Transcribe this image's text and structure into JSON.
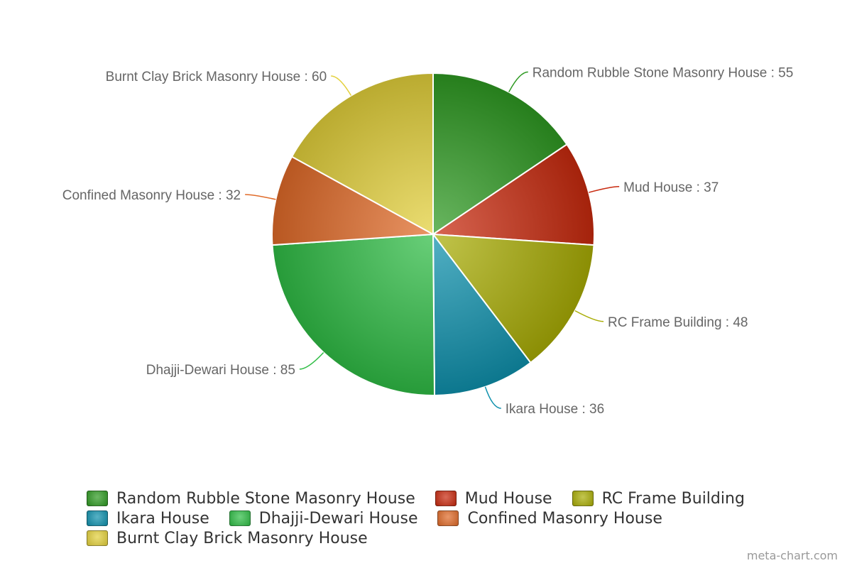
{
  "chart_data": {
    "type": "pie",
    "categories": [
      "Random Rubble Stone Masonry House",
      "Mud House",
      "RC Frame Building",
      "Ikara House",
      "Dhajji-Dewari House",
      "Confined Masonry House",
      "Burnt Clay Brick Masonry House"
    ],
    "values": [
      55,
      37,
      48,
      36,
      85,
      32,
      60
    ],
    "colors": [
      "#2e9a22",
      "#c8290e",
      "#a9ad05",
      "#0f91ad",
      "#2fbd45",
      "#e06a28",
      "#e3d03b"
    ],
    "label_colors": [
      "#2e9a22",
      "#c8290e",
      "#a9ad05",
      "#0f91ad",
      "#2fbd45",
      "#e06a28",
      "#e3d03b"
    ],
    "label_separator": " : ",
    "legend_position": "bottom"
  },
  "watermark": "meta-chart.com"
}
